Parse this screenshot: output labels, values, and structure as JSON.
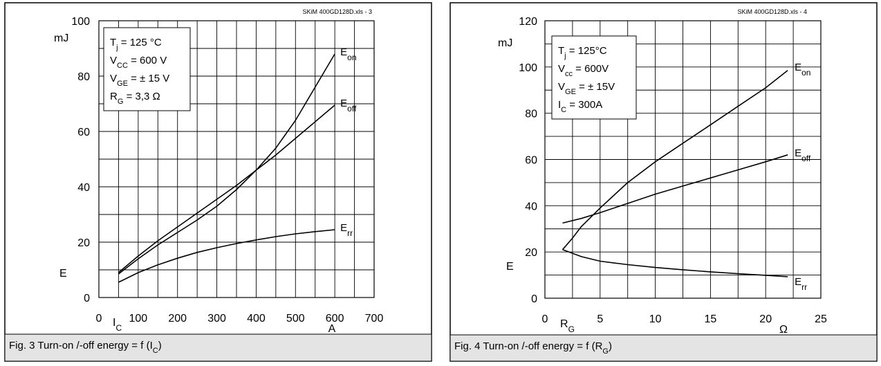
{
  "chart_data": [
    {
      "type": "line",
      "source": "SKiM 400GD128D.xls - 3",
      "caption": {
        "main": "Fig. 3 Turn-on /-off energy = f (I",
        "sub": "C",
        "tail": ")"
      },
      "ylabel": "E",
      "yunit": "mJ",
      "xlabel": {
        "main": "I",
        "sub": "C"
      },
      "xunit": "A",
      "xlim": [
        0,
        700
      ],
      "ylim": [
        0,
        100
      ],
      "xticks": [
        "0",
        "100",
        "200",
        "300",
        "400",
        "500",
        "600",
        "700"
      ],
      "yticks": [
        "0",
        "20",
        "40",
        "60",
        "80",
        "100"
      ],
      "grid": true,
      "legend_position": "top-left",
      "conditions": [
        {
          "main": "T",
          "sub": "j",
          "rest": " = 125 °C"
        },
        {
          "main": "V",
          "sub": "CC",
          "rest": " = 600 V"
        },
        {
          "main": "V",
          "sub": "GE",
          "rest": " = ± 15 V"
        },
        {
          "main": "R",
          "sub": "G",
          "rest": " = 3,3 Ω"
        }
      ],
      "series": [
        {
          "name": "E",
          "name_sub": "on",
          "x": [
            50,
            100,
            150,
            200,
            250,
            300,
            350,
            400,
            450,
            500,
            550,
            600
          ],
          "y": [
            8.5,
            14,
            19,
            23.5,
            28,
            33,
            39,
            46,
            54,
            64,
            76,
            88
          ]
        },
        {
          "name": "E",
          "name_sub": "off",
          "x": [
            50,
            100,
            150,
            200,
            250,
            300,
            350,
            400,
            450,
            500,
            550,
            600
          ],
          "y": [
            9,
            15,
            20.5,
            25.5,
            30.5,
            35.5,
            40.5,
            46,
            51.5,
            57.5,
            63.5,
            69.5
          ]
        },
        {
          "name": "E",
          "name_sub": "rr",
          "x": [
            50,
            100,
            150,
            200,
            250,
            300,
            350,
            400,
            450,
            500,
            550,
            600
          ],
          "y": [
            5.5,
            9,
            11.8,
            14.2,
            16.3,
            18,
            19.5,
            20.8,
            22,
            23,
            23.8,
            24.5
          ]
        }
      ]
    },
    {
      "type": "line",
      "source": "SKiM 400GD128D.xls - 4",
      "caption": {
        "main": "Fig. 4 Turn-on /-off energy = f (R",
        "sub": "G",
        "tail": ")"
      },
      "ylabel": "E",
      "yunit": "mJ",
      "xlabel": {
        "main": "R",
        "sub": "G"
      },
      "xunit": "Ω",
      "xlim": [
        0,
        25
      ],
      "ylim": [
        0,
        120
      ],
      "xticks": [
        "0",
        "5",
        "10",
        "15",
        "20",
        "25"
      ],
      "yticks": [
        "0",
        "20",
        "40",
        "60",
        "80",
        "100",
        "120"
      ],
      "grid": true,
      "legend_position": "top-left",
      "conditions": [
        {
          "main": "T",
          "sub": "j",
          "rest": " = 125°C"
        },
        {
          "main": "V",
          "sub": "cc",
          "rest": " = 600V"
        },
        {
          "main": "V",
          "sub": "GE",
          "rest": " = ± 15V"
        },
        {
          "main": "I",
          "sub": "C",
          "rest": " = 300A"
        }
      ],
      "series": [
        {
          "name": "E",
          "name_sub": "on",
          "x": [
            1.6,
            2.5,
            3.3,
            5,
            7.5,
            10,
            12.5,
            15,
            17.5,
            20,
            22
          ],
          "y": [
            21,
            26,
            31,
            39,
            50,
            59,
            67,
            75,
            83,
            91,
            98.5
          ]
        },
        {
          "name": "E",
          "name_sub": "off",
          "x": [
            1.6,
            3.3,
            5,
            7.5,
            10,
            12.5,
            15,
            17.5,
            20,
            22
          ],
          "y": [
            32.5,
            34.5,
            37,
            41,
            45,
            48.5,
            52,
            55.5,
            59,
            62
          ]
        },
        {
          "name": "E",
          "name_sub": "rr",
          "x": [
            1.6,
            3.3,
            5,
            7.5,
            10,
            12.5,
            15,
            17.5,
            20,
            22
          ],
          "y": [
            21,
            18,
            16,
            14.5,
            13.3,
            12.3,
            11.4,
            10.6,
            9.9,
            9.3
          ]
        }
      ]
    }
  ]
}
